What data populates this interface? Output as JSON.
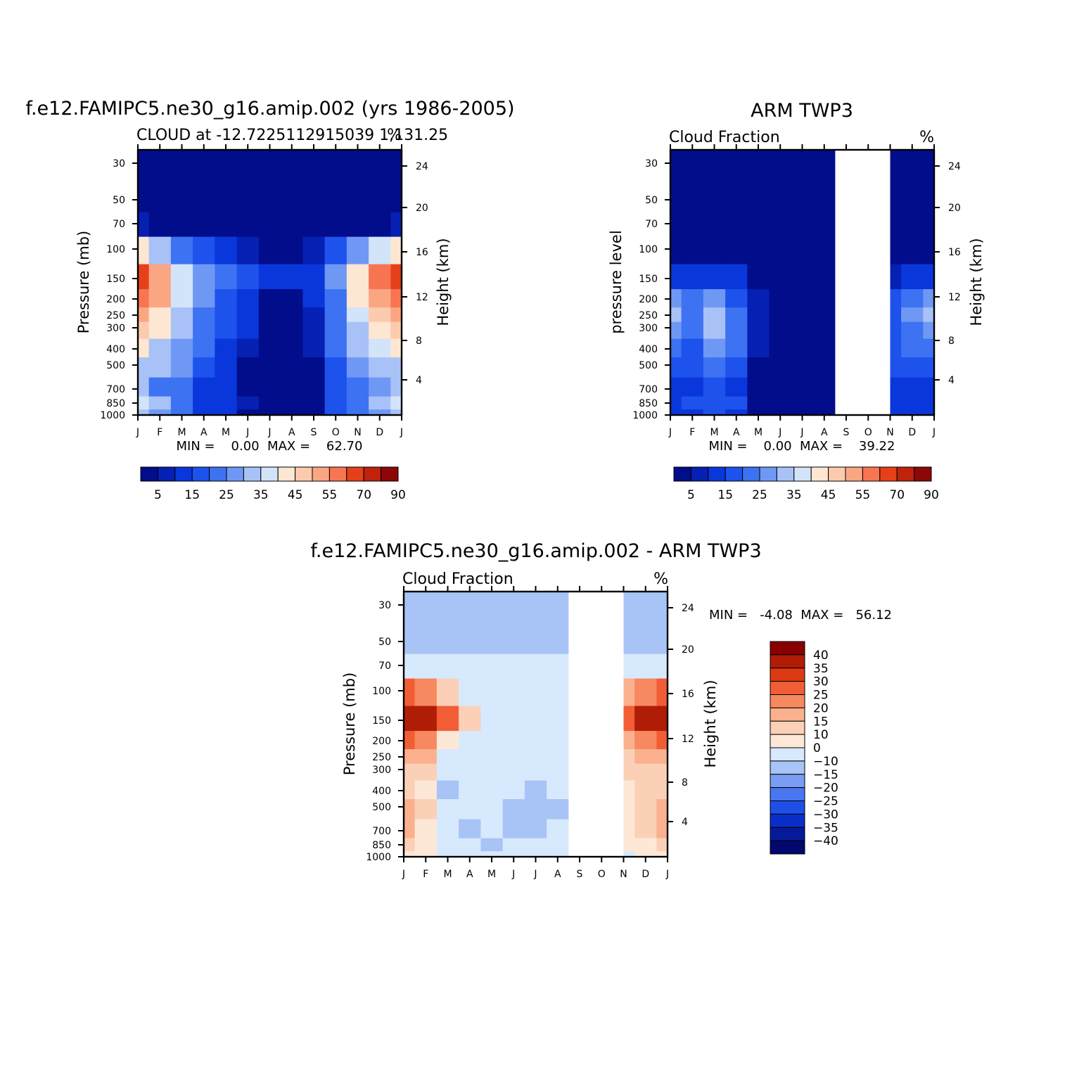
{
  "palettes": {
    "cloud": [
      "#020d8b",
      "#0520b3",
      "#0a37db",
      "#1d52ec",
      "#3d72f2",
      "#6f98f5",
      "#a8c2f7",
      "#d2e4fa",
      "#fde6d2",
      "#fccaad",
      "#fba683",
      "#f87552",
      "#e6401a",
      "#c0220c",
      "#8c0706"
    ],
    "diff": [
      "#02086e",
      "#051a9b",
      "#0a2fc8",
      "#1e50e8",
      "#4a76f0",
      "#7a9cf5",
      "#a8c4f6",
      "#d7e9fc",
      "#fde8d7",
      "#fcd0b6",
      "#fbb08e",
      "#f78960",
      "#f15e36",
      "#dd3a12",
      "#b01d07",
      "#880000"
    ]
  },
  "panels": [
    {
      "id": "model",
      "title": "f.e12.FAMIPC5.ne30_g16.amip.002 (yrs 1986-2005)",
      "subtitle_left": "CLOUD at -12.7225112915039 1,131.25",
      "subtitle_right": "%",
      "ylabel_left": "Pressure (mb)",
      "ylabel_right": "Height (km)",
      "minmax": "MIN =    0.00  MAX =    62.70"
    },
    {
      "id": "obs",
      "title": "ARM TWP3",
      "subtitle_left": "Cloud Fraction",
      "subtitle_right": "%",
      "ylabel_left": "pressure level",
      "ylabel_right": "Height (km)",
      "minmax": "MIN =    0.00  MAX =    39.22"
    },
    {
      "id": "diff",
      "title": "f.e12.FAMIPC5.ne30_g16.amip.002 - ARM TWP3",
      "subtitle_left": "Cloud Fraction",
      "subtitle_right": "%",
      "ylabel_left": "Pressure (mb)",
      "ylabel_right": "Height (km)",
      "minmax": "MIN =   -4.08  MAX =   56.12"
    }
  ],
  "axes": {
    "months": [
      "J",
      "F",
      "M",
      "A",
      "M",
      "J",
      "J",
      "A",
      "S",
      "O",
      "N",
      "D",
      "J"
    ],
    "pressure_ticks": [
      "30",
      "50",
      "70",
      "100",
      "150",
      "200",
      "250",
      "300",
      "400",
      "500",
      "700",
      "850",
      "1000"
    ],
    "height_ticks": [
      "24",
      "20",
      "16",
      "12",
      "8",
      "4"
    ]
  },
  "colorbars": {
    "cloud_labels": [
      "5",
      "15",
      "25",
      "35",
      "45",
      "55",
      "70",
      "90"
    ],
    "diff_labels": [
      "40",
      "35",
      "30",
      "25",
      "20",
      "15",
      "10",
      "0",
      "-10",
      "-15",
      "-20",
      "-25",
      "-30",
      "-35",
      "-40"
    ]
  },
  "chart_data": [
    {
      "type": "heatmap",
      "title": "f.e12.FAMIPC5.ne30_g16.amip.002 (yrs 1986-2005)",
      "subtitle": "CLOUD at -12.7225112915039 1,131.25",
      "units": "%",
      "xlabel": "",
      "ylabel": "Pressure (mb)",
      "ylabel_right": "Height (km)",
      "x": [
        "J",
        "F",
        "M",
        "A",
        "M",
        "J",
        "J",
        "A",
        "S",
        "O",
        "N",
        "D",
        "J"
      ],
      "y": [
        1000,
        850,
        700,
        500,
        400,
        300,
        250,
        200,
        150,
        100,
        70,
        50,
        30
      ],
      "ylim": [
        1000,
        20
      ],
      "levels": [
        0,
        5,
        10,
        15,
        20,
        25,
        30,
        35,
        40,
        45,
        50,
        55,
        60,
        70,
        80,
        90
      ],
      "min": 0.0,
      "max": 62.7,
      "values": [
        [
          32,
          28,
          22,
          12,
          10,
          4,
          2,
          3,
          2,
          18,
          22,
          26,
          32
        ],
        [
          38,
          32,
          24,
          14,
          10,
          6,
          2,
          2,
          2,
          18,
          24,
          30,
          38
        ],
        [
          30,
          24,
          20,
          14,
          10,
          4,
          2,
          2,
          2,
          16,
          22,
          26,
          30
        ],
        [
          34,
          30,
          26,
          18,
          12,
          4,
          2,
          2,
          4,
          16,
          26,
          30,
          34
        ],
        [
          40,
          34,
          28,
          22,
          14,
          6,
          2,
          2,
          6,
          20,
          30,
          36,
          40
        ],
        [
          46,
          40,
          30,
          24,
          18,
          10,
          2,
          2,
          8,
          22,
          34,
          42,
          46
        ],
        [
          50,
          44,
          32,
          24,
          18,
          10,
          2,
          2,
          8,
          22,
          36,
          46,
          50
        ],
        [
          58,
          50,
          36,
          26,
          18,
          12,
          2,
          2,
          10,
          24,
          40,
          52,
          58
        ],
        [
          62,
          54,
          38,
          26,
          20,
          16,
          10,
          10,
          14,
          26,
          42,
          56,
          62
        ],
        [
          40,
          32,
          22,
          18,
          10,
          6,
          2,
          4,
          6,
          16,
          26,
          36,
          40
        ],
        [
          6,
          4,
          2,
          2,
          1,
          1,
          1,
          1,
          1,
          2,
          2,
          4,
          6
        ],
        [
          0,
          0,
          0,
          0,
          0,
          0,
          0,
          0,
          0,
          0,
          0,
          0,
          0
        ],
        [
          0,
          0,
          0,
          0,
          0,
          0,
          0,
          0,
          0,
          0,
          0,
          0,
          0
        ]
      ]
    },
    {
      "type": "heatmap",
      "title": "ARM TWP3",
      "subtitle": "Cloud Fraction",
      "units": "%",
      "xlabel": "",
      "ylabel": "pressure level",
      "ylabel_right": "Height (km)",
      "x": [
        "J",
        "F",
        "M",
        "A",
        "M",
        "J",
        "J",
        "A",
        "S",
        "O",
        "N",
        "D",
        "J"
      ],
      "y": [
        1000,
        850,
        700,
        500,
        400,
        300,
        250,
        200,
        150,
        100,
        70,
        50,
        30
      ],
      "ylim": [
        1000,
        20
      ],
      "levels": [
        0,
        5,
        10,
        15,
        20,
        25,
        30,
        35,
        40,
        45,
        50,
        55,
        60,
        70,
        80,
        90
      ],
      "min": 0.0,
      "max": 39.22,
      "missing_months": [
        "S",
        "O"
      ],
      "values": [
        [
          10,
          12,
          16,
          14,
          4,
          2,
          1,
          1,
          null,
          null,
          10,
          10,
          10
        ],
        [
          14,
          18,
          18,
          16,
          4,
          1,
          1,
          1,
          null,
          null,
          14,
          12,
          14
        ],
        [
          10,
          12,
          16,
          14,
          4,
          1,
          1,
          1,
          null,
          null,
          10,
          12,
          10
        ],
        [
          18,
          16,
          22,
          18,
          4,
          1,
          1,
          1,
          null,
          null,
          16,
          18,
          18
        ],
        [
          22,
          18,
          26,
          20,
          6,
          1,
          1,
          1,
          null,
          null,
          16,
          20,
          22
        ],
        [
          28,
          20,
          30,
          20,
          6,
          1,
          1,
          1,
          null,
          null,
          18,
          24,
          28
        ],
        [
          30,
          22,
          32,
          20,
          6,
          1,
          1,
          1,
          null,
          null,
          18,
          26,
          30
        ],
        [
          26,
          20,
          28,
          18,
          6,
          1,
          1,
          1,
          null,
          null,
          16,
          24,
          26
        ],
        [
          12,
          10,
          12,
          10,
          4,
          1,
          1,
          1,
          null,
          null,
          8,
          10,
          12
        ],
        [
          2,
          2,
          4,
          2,
          1,
          0,
          0,
          0,
          null,
          null,
          2,
          2,
          2
        ],
        [
          0,
          0,
          0,
          0,
          0,
          0,
          0,
          0,
          null,
          null,
          0,
          0,
          0
        ],
        [
          0,
          0,
          0,
          0,
          0,
          0,
          0,
          0,
          null,
          null,
          0,
          0,
          0
        ],
        [
          0,
          0,
          0,
          0,
          0,
          0,
          0,
          0,
          null,
          null,
          0,
          0,
          0
        ]
      ]
    },
    {
      "type": "heatmap",
      "title": "f.e12.FAMIPC5.ne30_g16.amip.002 - ARM TWP3",
      "subtitle": "Cloud Fraction",
      "units": "%",
      "xlabel": "",
      "ylabel": "Pressure (mb)",
      "ylabel_right": "Height (km)",
      "x": [
        "J",
        "F",
        "M",
        "A",
        "M",
        "J",
        "J",
        "A",
        "S",
        "O",
        "N",
        "D",
        "J"
      ],
      "y": [
        1000,
        850,
        700,
        500,
        400,
        300,
        250,
        200,
        150,
        100,
        70,
        50,
        30
      ],
      "ylim": [
        1000,
        20
      ],
      "levels": [
        -40,
        -35,
        -30,
        -25,
        -20,
        -15,
        -10,
        0,
        10,
        15,
        20,
        25,
        30,
        35,
        40
      ],
      "min": -4.08,
      "max": 56.12,
      "missing_months": [
        "S",
        "O"
      ],
      "values": [
        [
          14,
          12,
          6,
          2,
          2,
          2,
          1,
          1,
          null,
          null,
          8,
          12,
          14
        ],
        [
          16,
          10,
          4,
          2,
          -2,
          2,
          1,
          1,
          null,
          null,
          10,
          14,
          16
        ],
        [
          20,
          12,
          4,
          -2,
          2,
          -2,
          -2,
          1,
          null,
          null,
          10,
          16,
          20
        ],
        [
          22,
          16,
          6,
          2,
          2,
          -2,
          -2,
          -2,
          null,
          null,
          12,
          18,
          22
        ],
        [
          16,
          14,
          -2,
          2,
          2,
          2,
          -2,
          2,
          null,
          null,
          14,
          16,
          16
        ],
        [
          18,
          16,
          4,
          2,
          2,
          2,
          2,
          2,
          null,
          null,
          16,
          18,
          18
        ],
        [
          22,
          20,
          6,
          2,
          2,
          2,
          2,
          2,
          null,
          null,
          18,
          22,
          22
        ],
        [
          30,
          26,
          12,
          6,
          2,
          2,
          2,
          2,
          null,
          null,
          22,
          28,
          30
        ],
        [
          50,
          44,
          30,
          16,
          8,
          6,
          6,
          6,
          null,
          null,
          34,
          46,
          50
        ],
        [
          30,
          28,
          16,
          8,
          6,
          4,
          4,
          4,
          null,
          null,
          20,
          28,
          30
        ],
        [
          4,
          4,
          2,
          2,
          2,
          2,
          2,
          2,
          null,
          null,
          2,
          4,
          4
        ],
        [
          -2,
          -2,
          -2,
          -2,
          -2,
          -2,
          -2,
          -2,
          null,
          null,
          -2,
          -2,
          -2
        ],
        [
          -2,
          -2,
          -2,
          -2,
          -2,
          -2,
          -2,
          -2,
          null,
          null,
          -2,
          -2,
          -2
        ]
      ]
    }
  ]
}
